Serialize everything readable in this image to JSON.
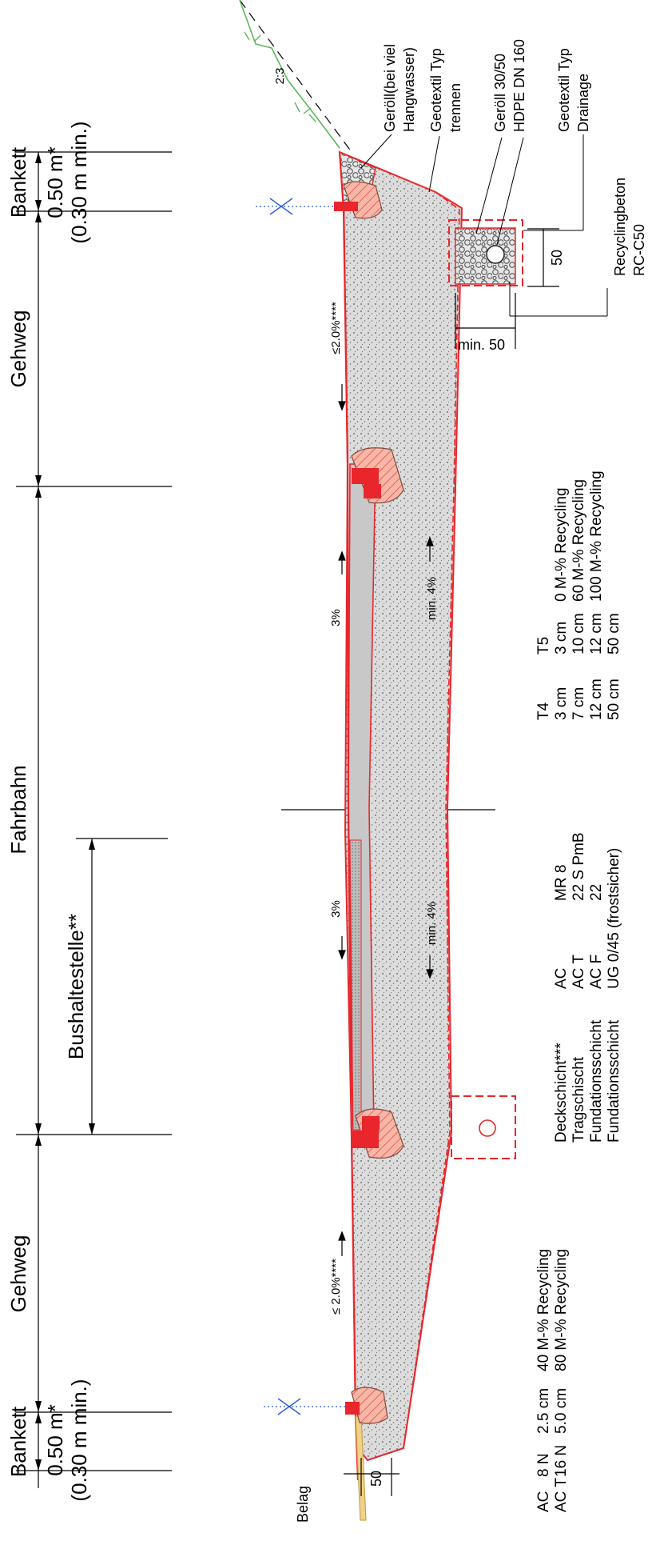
{
  "sections": {
    "bankett_top": "Bankett",
    "gehweg_top": "Gehweg",
    "fahrbahn": "Fahrbahn",
    "gehweg_bottom": "Gehweg",
    "bankett_bottom": "Bankett",
    "bushaltestelle": "Bushaltestelle**"
  },
  "dims": {
    "bankett_top_width": "0.50 m*",
    "bankett_top_min": "(0.30 m min.)",
    "bankett_bottom_width": "0.50 m*",
    "bankett_bottom_min": "(0.30 m min.)",
    "drain_depth": "50",
    "drain_offset": "min. 50",
    "belag_dim": "50"
  },
  "slopes": {
    "top_walkway": "≤2.0%****",
    "top_road": "3%",
    "top_base": "min. 4%",
    "bottom_road": "3%",
    "bottom_base": "min. 4%",
    "bottom_walkway": "≤ 2.0%****",
    "embankment": "2:3"
  },
  "callouts": {
    "geroell_line1": "Geröll(bei viel",
    "geroell_line2": "Hangwasser)",
    "geotextil_trennen_1": "Geotextil Typ",
    "geotextil_trennen_2": "trennen",
    "geroell_3050": "Geröll 30/50",
    "hdpe": "HDPE DN 160",
    "geotextil_drainage_1": "Geotextil Typ",
    "geotextil_drainage_2": "Drainage",
    "recyclingbeton_1": "Recyclingbeton",
    "recyclingbeton_2": "RC-C50",
    "belag": "Belag"
  },
  "layers_table": {
    "headers": [
      "",
      "",
      "",
      "T4",
      "T5",
      ""
    ],
    "rows": [
      [
        "Deckschicht***",
        "AC",
        "MR 8",
        "3 cm",
        "3 cm",
        "0 M-% Recycling"
      ],
      [
        "Tragschischt",
        "AC T",
        "22 S  PmB",
        "7 cm",
        "10 cm",
        "60 M-% Recycling"
      ],
      [
        "Fundationsschicht",
        "AC F",
        "22",
        "12 cm",
        "12 cm",
        "100 M-% Recycling"
      ],
      [
        "Fundationsschicht",
        "UG 0/45 (frostsicher)",
        "",
        "50 cm",
        "50 cm",
        ""
      ]
    ]
  },
  "belag_table": {
    "rows": [
      [
        "AC",
        "8 N",
        "2.5 cm",
        "40 M-% Recycling"
      ],
      [
        "AC T",
        "16 N",
        "5.0 cm",
        "80 M-% Recycling"
      ]
    ]
  },
  "colors": {
    "outline_red": "#e8262b",
    "fill_pink": "#f6b7a7",
    "gravel_grey": "#c8c8c8",
    "asphalt_grey": "#bdbdbd",
    "belag_yellow": "#f1d189",
    "terrain_green": "#5fb55a",
    "water_blue": "#2d5bd8"
  }
}
